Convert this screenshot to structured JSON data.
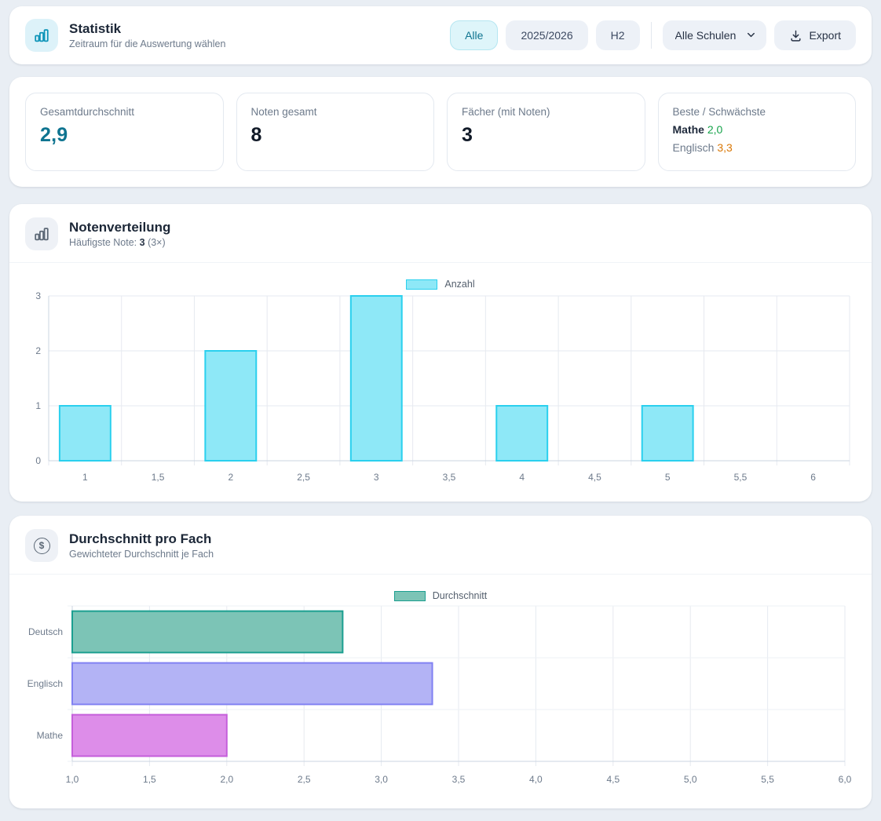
{
  "header": {
    "title": "Statistik",
    "subtitle": "Zeitraum für die Auswertung wählen",
    "filters": [
      {
        "label": "Alle",
        "active": true
      },
      {
        "label": "2025/2026",
        "active": false
      },
      {
        "label": "H2",
        "active": false
      }
    ],
    "school_select": {
      "value": "Alle Schulen"
    },
    "export_label": "Export"
  },
  "stats": [
    {
      "label": "Gesamtdurchschnitt",
      "value": "2,9",
      "value_color": "#0e7490"
    },
    {
      "label": "Noten gesamt",
      "value": "8",
      "value_color": "#111a28"
    },
    {
      "label": "Fächer (mit Noten)",
      "value": "3",
      "value_color": "#111a28"
    },
    {
      "label": "Beste / Schwächste",
      "best": {
        "subject": "Mathe",
        "value": "2,0",
        "color": "#16a34a"
      },
      "worst": {
        "subject": "Englisch",
        "value": "3,3",
        "color": "#d97706"
      }
    }
  ],
  "distribution_card": {
    "title": "Notenverteilung",
    "subtitle_prefix": "Häufigste Note: ",
    "subtitle_bold": "3",
    "subtitle_suffix": " (3×)"
  },
  "average_card": {
    "title": "Durchschnitt pro Fach",
    "subtitle": "Gewichteter Durchschnitt je Fach"
  },
  "chart_data": [
    {
      "type": "bar",
      "title": "Notenverteilung",
      "legend": "Anzahl",
      "legend_position": "top",
      "legend_fill": "#8ee8f7",
      "legend_border": "#2ad0ee",
      "categories": [
        "1",
        "1,5",
        "2",
        "2,5",
        "3",
        "3,5",
        "4",
        "4,5",
        "5",
        "5,5",
        "6"
      ],
      "values": [
        1,
        0,
        2,
        0,
        3,
        0,
        1,
        0,
        1,
        0,
        0
      ],
      "xlabel": "",
      "ylabel": "",
      "ylim": [
        0,
        3
      ],
      "yticks": [
        0,
        1,
        2,
        3
      ],
      "grid": true,
      "bar_fill": "#8ee8f7",
      "bar_border": "#2ad0ee"
    },
    {
      "type": "bar-horizontal",
      "title": "Durchschnitt pro Fach",
      "legend": "Durchschnitt",
      "legend_position": "top",
      "legend_fill": "#7cc4b6",
      "legend_border": "#1b9f90",
      "categories": [
        "Deutsch",
        "Englisch",
        "Mathe"
      ],
      "values": [
        2.75,
        3.33,
        2.0
      ],
      "xlabel": "",
      "ylabel": "",
      "xlim": [
        1,
        6
      ],
      "xtick_values": [
        1,
        1.5,
        2,
        2.5,
        3,
        3.5,
        4,
        4.5,
        5,
        5.5,
        6
      ],
      "xtick_labels": [
        "1,0",
        "1,5",
        "2,0",
        "2,5",
        "3,0",
        "3,5",
        "4,0",
        "4,5",
        "5,0",
        "5,5",
        "6,0"
      ],
      "grid": true,
      "bar_fills": [
        "#7cc4b6",
        "#b3b3f5",
        "#dd8de9"
      ],
      "bar_borders": [
        "#1b9f90",
        "#8181f2",
        "#c55fdb"
      ]
    }
  ]
}
